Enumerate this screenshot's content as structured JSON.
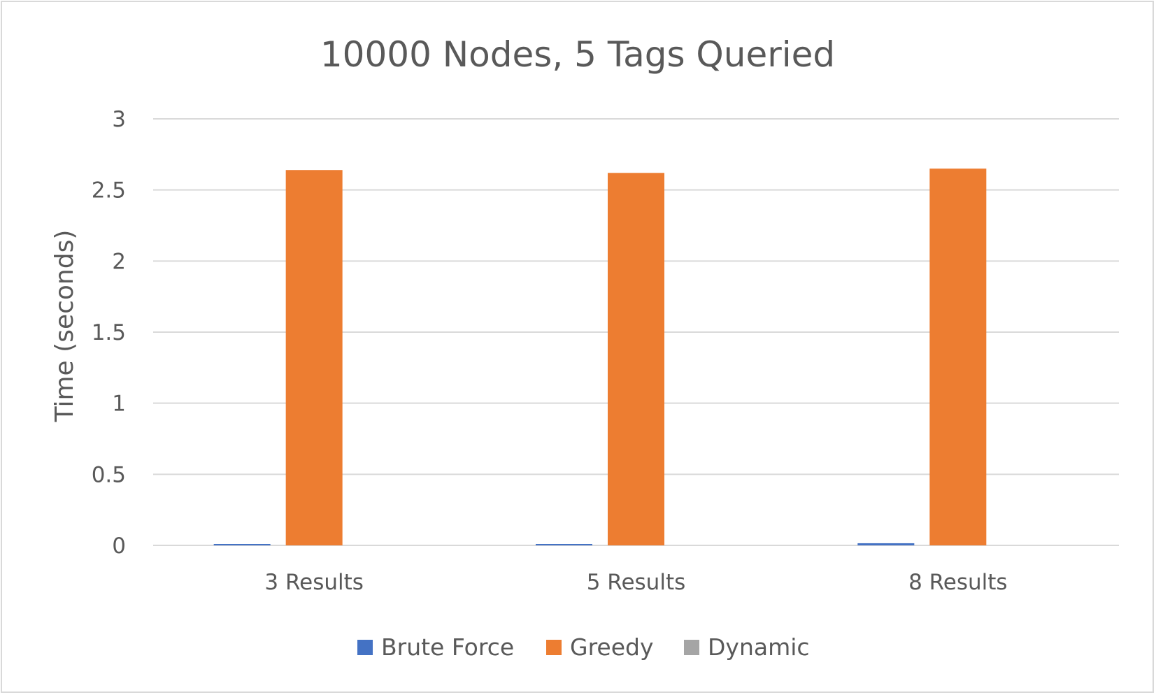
{
  "chart_data": {
    "type": "bar",
    "title": "10000 Nodes, 5 Tags Queried",
    "xlabel": "",
    "ylabel": "Time (seconds)",
    "categories": [
      "3 Results",
      "5 Results",
      "8 Results"
    ],
    "series": [
      {
        "name": "Brute Force",
        "color": "#4472c4",
        "values": [
          0.002,
          0.008,
          0.015
        ]
      },
      {
        "name": "Greedy",
        "color": "#ed7d31",
        "values": [
          2.64,
          2.62,
          2.65
        ]
      },
      {
        "name": "Dynamic",
        "color": "#a5a5a5",
        "values": [
          0.0,
          0.0,
          0.0
        ]
      }
    ],
    "ylim": [
      0,
      3
    ],
    "yticks": [
      "0",
      "0.5",
      "1",
      "1.5",
      "2",
      "2.5",
      "3"
    ],
    "ytick_values": [
      0,
      0.5,
      1,
      1.5,
      2,
      2.5,
      3
    ],
    "grid": true,
    "legend_position": "bottom"
  }
}
